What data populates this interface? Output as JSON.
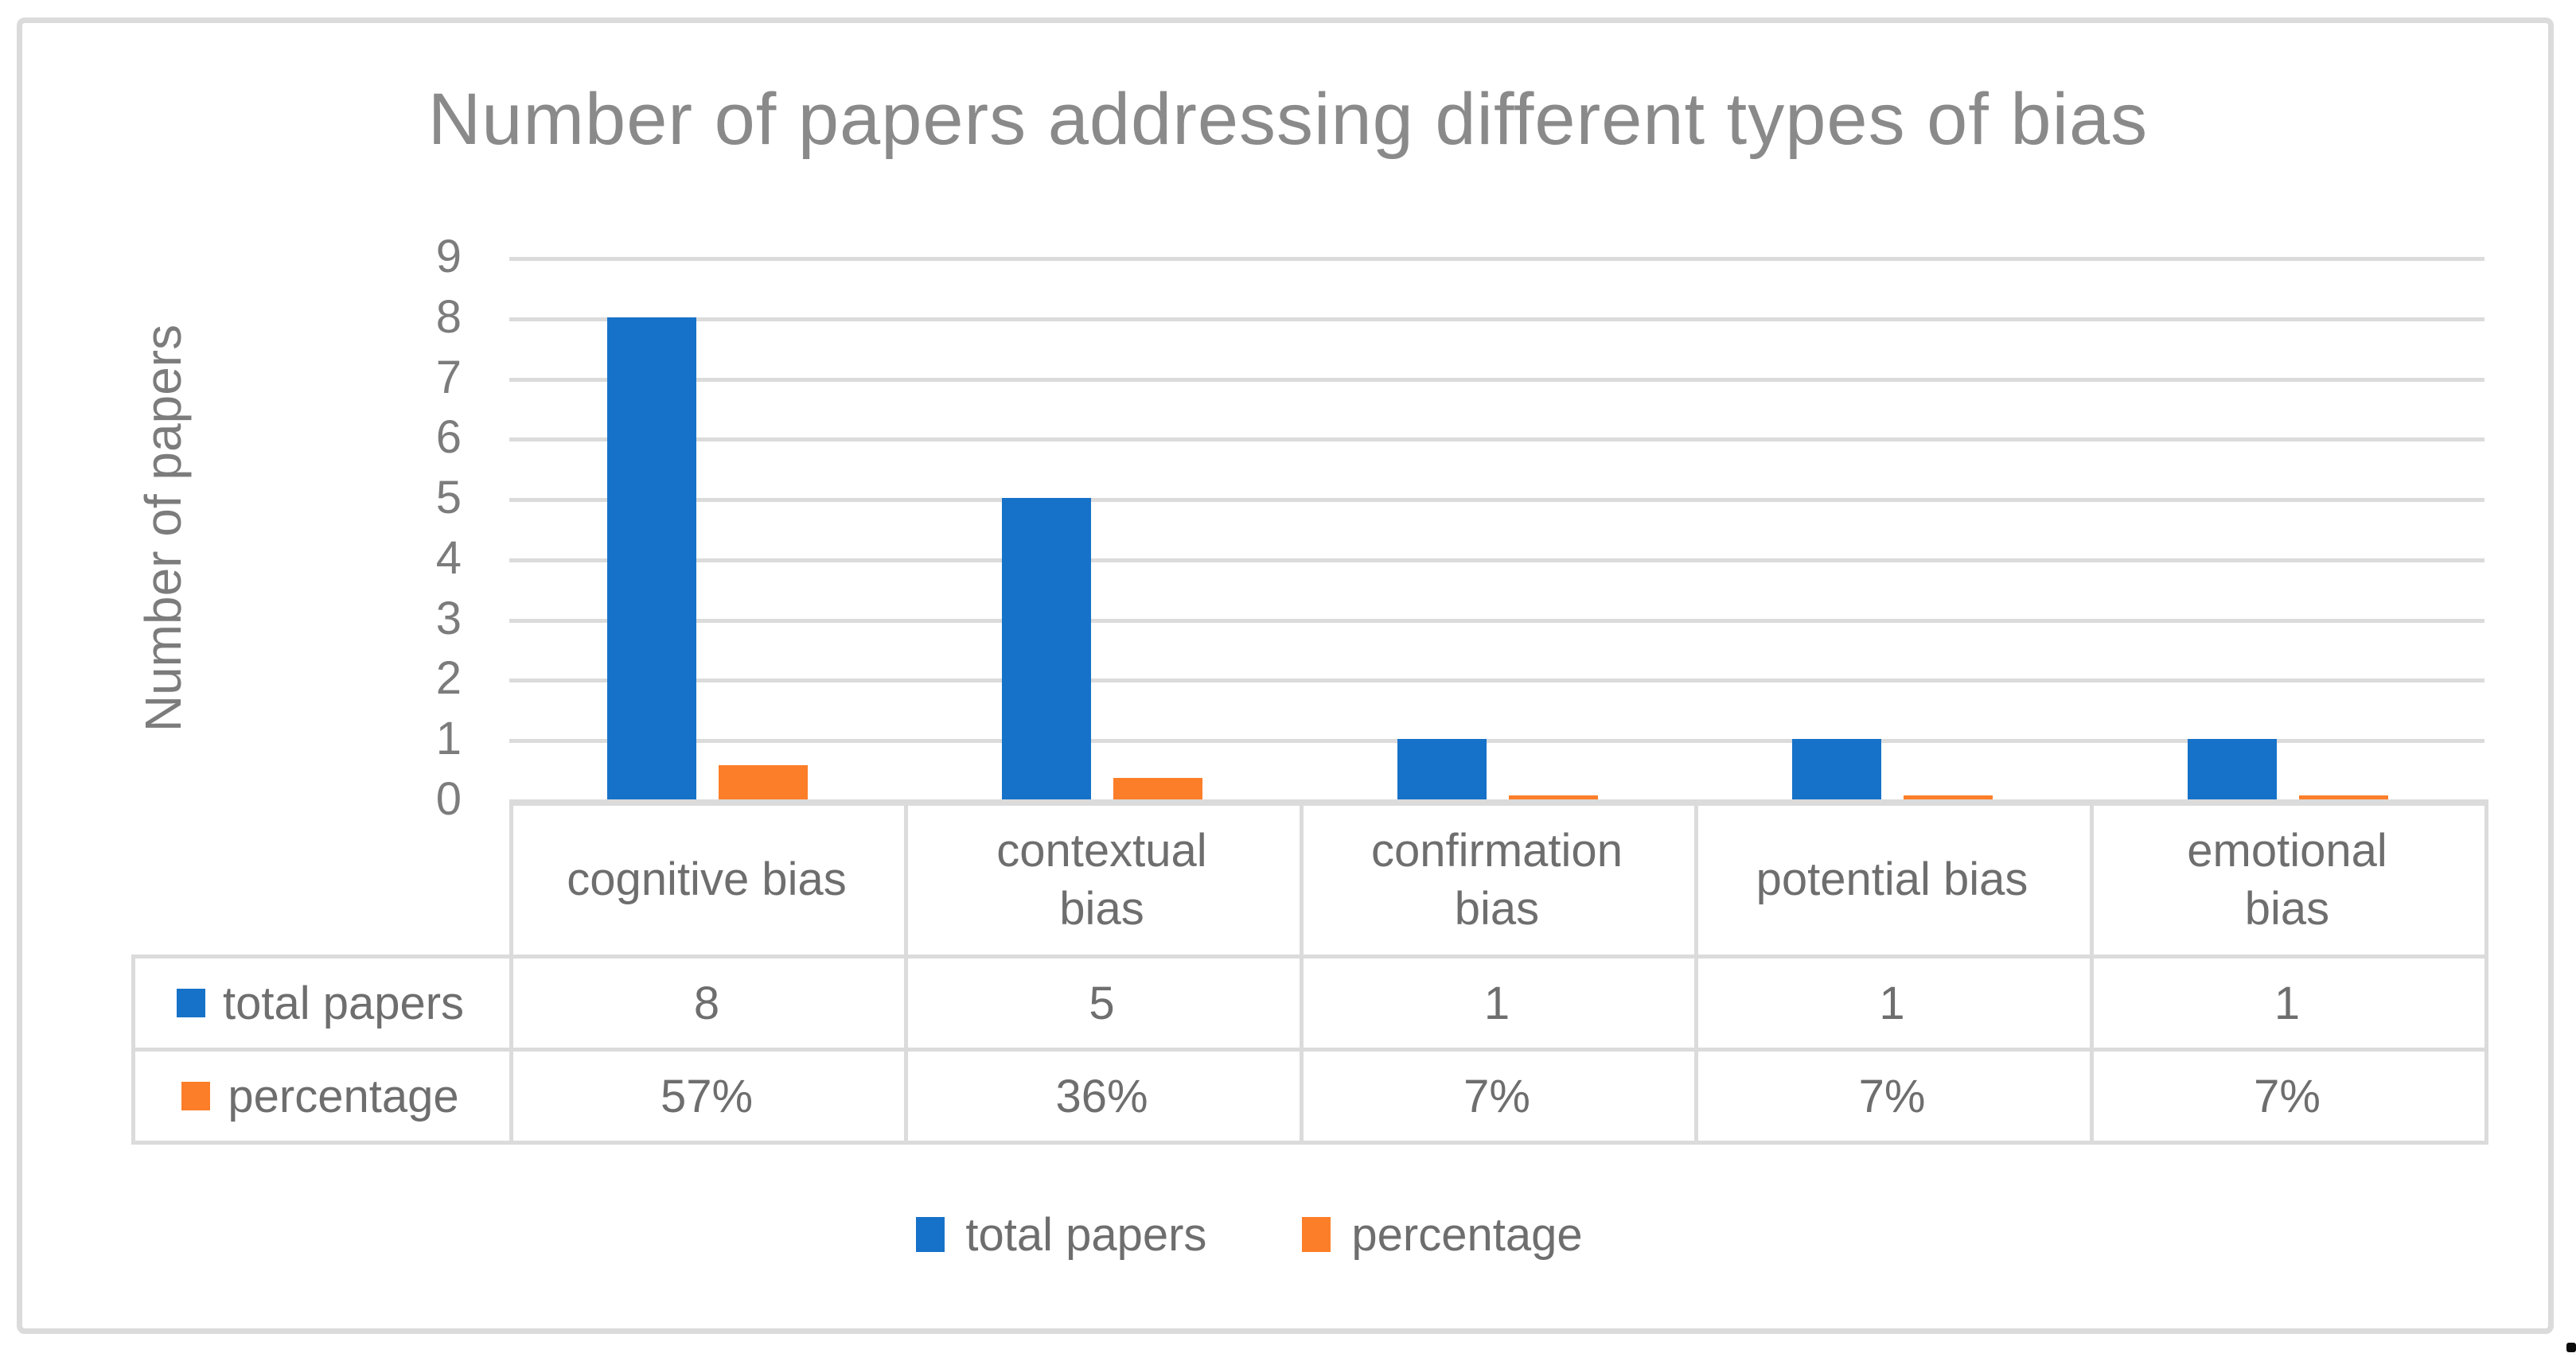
{
  "chart_data": {
    "type": "bar",
    "title": "Number of papers addressing different types of bias",
    "xlabel": "",
    "ylabel": "Number of papers",
    "ylim": [
      0,
      9
    ],
    "yticks": [
      0,
      1,
      2,
      3,
      4,
      5,
      6,
      7,
      8,
      9
    ],
    "grid": true,
    "legend_position": "bottom",
    "data_table_shown": true,
    "categories": [
      "cognitive bias",
      "contextual bias",
      "confirmation bias",
      "potential bias",
      "emotional bias"
    ],
    "category_display": [
      "cognitive bias",
      "contextual\nbias",
      "confirmation\nbias",
      "potential bias",
      "emotional\nbias"
    ],
    "series": [
      {
        "name": "total papers",
        "values": [
          8,
          5,
          1,
          1,
          1
        ],
        "display_values": [
          "8",
          "5",
          "1",
          "1",
          "1"
        ],
        "color": "#1672C8",
        "plot_scale": 1
      },
      {
        "name": "percentage",
        "values": [
          57,
          36,
          7,
          7,
          7
        ],
        "display_values": [
          "57%",
          "36%",
          "7%",
          "7%",
          "7%"
        ],
        "unit": "%",
        "color": "#FC7E28",
        "plot_scale": 0.01
      }
    ]
  },
  "colors": {
    "grid": "#DBDBDB",
    "frame": "#DBDBDB",
    "title_text": "#8A8A8A",
    "axis_text": "#7C7C7C",
    "table_text": "#6E6E6E",
    "background": "#FFFFFF"
  }
}
